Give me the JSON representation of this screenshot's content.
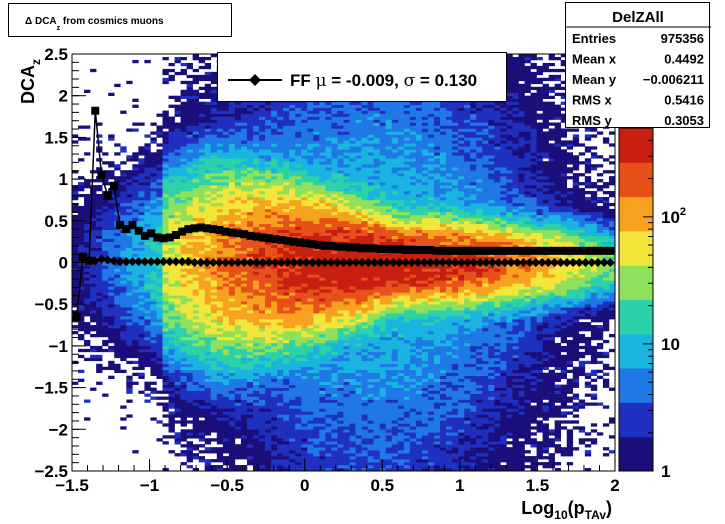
{
  "title": {
    "text": "Δ DCA",
    "sub": "z",
    "rest": " from cosmics muons"
  },
  "stats": {
    "name": "DelZAll",
    "rows": [
      {
        "label": "Entries",
        "value": "975356"
      },
      {
        "label": "Mean x",
        "value": "0.4492"
      },
      {
        "label": "Mean y",
        "value": "−0.006211"
      },
      {
        "label": "RMS x",
        "value": "0.5416"
      },
      {
        "label": "RMS y",
        "value": "0.3053"
      }
    ]
  },
  "legend": {
    "text_prefix": "FF ",
    "mu": "μ",
    "mu_val": " = -0.009, ",
    "sigma": "σ",
    "sigma_val": " =   0.130"
  },
  "chart_data": {
    "type": "heatmap",
    "xlabel": {
      "main": "Log",
      "sub1": "10",
      "mid": "(p",
      "sub2": "TAv",
      "end": ")"
    },
    "ylabel": {
      "main": "DCA",
      "sub": "z"
    },
    "xlim": [
      -1.5,
      2.0
    ],
    "ylim": [
      -2.5,
      2.5
    ],
    "x_ticks": [
      "−1.5",
      "−1",
      "−0.5",
      "0",
      "0.5",
      "1",
      "1.5",
      "2"
    ],
    "x_tick_values": [
      -1.5,
      -1,
      -0.5,
      0,
      0.5,
      1,
      1.5,
      2
    ],
    "y_ticks": [
      "−2.5",
      "−2",
      "−1.5",
      "−1",
      "−0.5",
      "0",
      "0.5",
      "1",
      "1.5",
      "2",
      "2.5"
    ],
    "y_tick_values": [
      -2.5,
      -2,
      -1.5,
      -1,
      -0.5,
      0,
      0.5,
      1,
      1.5,
      2,
      2.5
    ],
    "z_scale": "log",
    "z_range": [
      1,
      500
    ],
    "z_ticks": [
      {
        "label": "1",
        "value": 1
      },
      {
        "label": "10",
        "value": 10
      },
      {
        "label": "10",
        "sup": "2",
        "value": 100
      }
    ],
    "palette": [
      "#1a0f7a",
      "#1f2fbf",
      "#1f78e6",
      "#19b4e0",
      "#2dd1a8",
      "#8fe05a",
      "#f2e63a",
      "#f7a21f",
      "#e8501a",
      "#c81f10"
    ],
    "series": [
      {
        "name": "sigma",
        "marker": "square",
        "x": [
          -1.47,
          -1.43,
          -1.39,
          -1.35,
          -1.31,
          -1.27,
          -1.23,
          -1.19,
          -1.15,
          -1.11,
          -1.07,
          -1.03,
          -0.99,
          -0.95,
          -0.91,
          -0.87,
          -0.83,
          -0.79,
          -0.75,
          -0.71,
          -0.67,
          -0.63,
          -0.59,
          -0.55,
          -0.51,
          -0.47,
          -0.43,
          -0.39,
          -0.35,
          -0.31,
          -0.27,
          -0.23,
          -0.19,
          -0.15,
          -0.11,
          -0.07,
          -0.03,
          0.01,
          0.05,
          0.09,
          0.13,
          0.17,
          0.21,
          0.25,
          0.29,
          0.33,
          0.37,
          0.41,
          0.45,
          0.49,
          0.53,
          0.57,
          0.61,
          0.65,
          0.69,
          0.73,
          0.77,
          0.81,
          0.85,
          0.89,
          0.93,
          0.97,
          1.01,
          1.05,
          1.09,
          1.13,
          1.17,
          1.21,
          1.25,
          1.29,
          1.33,
          1.37,
          1.41,
          1.45,
          1.49,
          1.53,
          1.57,
          1.61,
          1.65,
          1.69,
          1.73,
          1.77,
          1.81,
          1.85,
          1.89,
          1.93,
          1.97
        ],
        "y": [
          -0.65,
          0.07,
          0.02,
          1.82,
          1.05,
          0.8,
          0.92,
          0.45,
          0.4,
          0.45,
          0.38,
          0.32,
          0.35,
          0.3,
          0.29,
          0.3,
          0.33,
          0.37,
          0.4,
          0.41,
          0.42,
          0.41,
          0.4,
          0.39,
          0.37,
          0.36,
          0.35,
          0.34,
          0.32,
          0.31,
          0.3,
          0.29,
          0.28,
          0.27,
          0.26,
          0.25,
          0.24,
          0.23,
          0.22,
          0.21,
          0.2,
          0.2,
          0.19,
          0.19,
          0.18,
          0.18,
          0.17,
          0.17,
          0.17,
          0.16,
          0.16,
          0.16,
          0.16,
          0.15,
          0.15,
          0.15,
          0.15,
          0.15,
          0.14,
          0.14,
          0.14,
          0.14,
          0.14,
          0.14,
          0.14,
          0.14,
          0.14,
          0.14,
          0.14,
          0.14,
          0.14,
          0.14,
          0.14,
          0.14,
          0.14,
          0.14,
          0.14,
          0.14,
          0.14,
          0.14,
          0.14,
          0.14,
          0.14,
          0.14,
          0.14,
          0.14,
          0.14
        ]
      },
      {
        "name": "mean",
        "marker": "diamond",
        "x": [
          -1.43,
          -1.39,
          -1.35,
          -1.31,
          -1.27,
          -1.23,
          -1.19,
          -1.15,
          -1.11,
          -1.07,
          -1.03,
          -0.99,
          -0.95,
          -0.91,
          -0.87,
          -0.83,
          -0.79,
          -0.75,
          -0.71,
          -0.67,
          -0.63,
          -0.59,
          -0.55,
          -0.51,
          -0.47,
          -0.43,
          -0.39,
          -0.35,
          -0.31,
          -0.27,
          -0.23,
          -0.19,
          -0.15,
          -0.11,
          -0.07,
          -0.03,
          0.01,
          0.05,
          0.09,
          0.13,
          0.17,
          0.21,
          0.25,
          0.29,
          0.33,
          0.37,
          0.41,
          0.45,
          0.49,
          0.53,
          0.57,
          0.61,
          0.65,
          0.69,
          0.73,
          0.77,
          0.81,
          0.85,
          0.89,
          0.93,
          0.97,
          1.01,
          1.05,
          1.09,
          1.13,
          1.17,
          1.21,
          1.25,
          1.29,
          1.33,
          1.37,
          1.41,
          1.45,
          1.49,
          1.53,
          1.57,
          1.61,
          1.65,
          1.69,
          1.73,
          1.77,
          1.81,
          1.85,
          1.89,
          1.93,
          1.97
        ],
        "y": [
          0.05,
          0.03,
          0.02,
          0.04,
          0.03,
          0.02,
          0.01,
          0.01,
          0.01,
          0.01,
          0.01,
          0.01,
          0.01,
          0.01,
          0.01,
          0.01,
          0.01,
          0.01,
          0.0,
          0.0,
          0.0,
          0.0,
          0.0,
          0.0,
          0.0,
          0.0,
          0.0,
          0.0,
          0.0,
          0.0,
          0.0,
          0.0,
          0.0,
          0.0,
          0.0,
          0.0,
          0.0,
          0.0,
          0.0,
          0.0,
          0.0,
          0.0,
          0.0,
          0.0,
          0.0,
          0.0,
          0.0,
          0.0,
          0.0,
          0.0,
          0.0,
          0.0,
          0.0,
          0.0,
          0.0,
          0.0,
          0.0,
          0.0,
          0.0,
          0.0,
          0.0,
          0.0,
          0.0,
          0.0,
          0.0,
          0.0,
          0.0,
          0.0,
          0.0,
          0.0,
          0.0,
          0.0,
          0.0,
          0.0,
          0.0,
          0.0,
          0.0,
          0.0,
          0.0,
          0.0,
          0.0,
          0.0,
          0.0,
          0.0,
          0.0,
          0.0
        ]
      }
    ],
    "density_model": {
      "mean_x": 0.4492,
      "mean_y": -0.006211,
      "rms_x": 0.5416,
      "rms_y": 0.3053,
      "peak_counts": 480
    }
  }
}
